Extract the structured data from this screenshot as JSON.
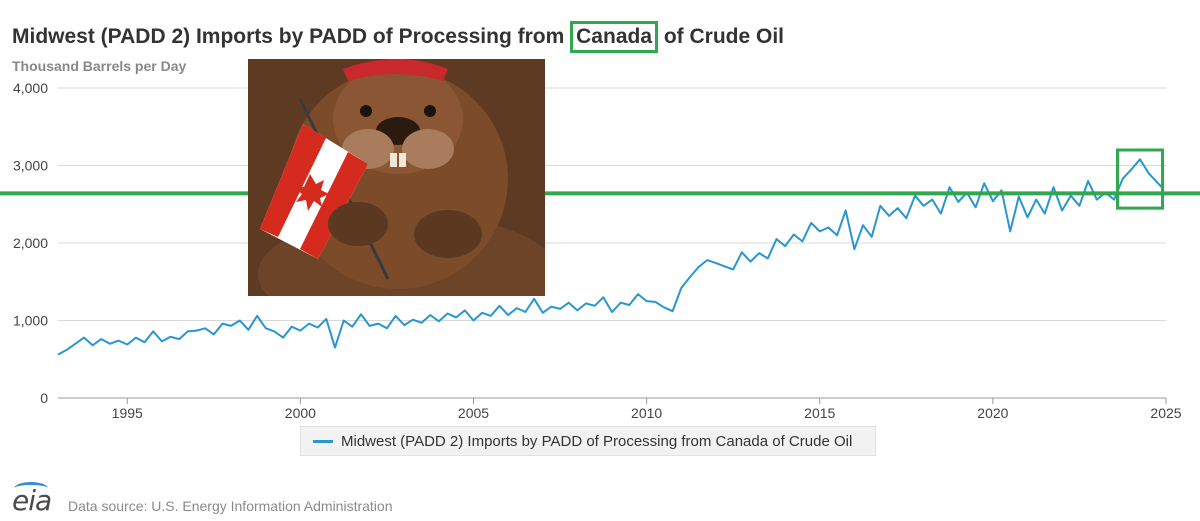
{
  "title": {
    "before": "Midwest (PADD 2) Imports by PADD of Processing from",
    "highlight": "Canada",
    "after": "of Crude Oil"
  },
  "unit_label": "Thousand Barrels per Day",
  "legend_label": "Midwest (PADD 2) Imports by PADD of Processing from Canada of Crude Oil",
  "source": "Data source: U.S. Energy Information Administration",
  "logo": "eia",
  "colors": {
    "series": "#2a96cf",
    "annotation": "#2fa84f",
    "grid": "#d8d8d8",
    "axis_text": "#444444"
  },
  "chart_data": {
    "type": "line",
    "title": "Midwest (PADD 2) Imports by PADD of Processing from Canada of Crude Oil",
    "ylabel": "Thousand Barrels per Day",
    "xlabel": "",
    "xlim": [
      1993.0,
      2025.0
    ],
    "ylim": [
      0,
      4000
    ],
    "yticks": [
      0,
      1000,
      2000,
      3000,
      4000
    ],
    "ytick_labels": [
      "0",
      "1,000",
      "2,000",
      "3,000",
      "4,000"
    ],
    "xticks": [
      1995,
      2000,
      2005,
      2010,
      2015,
      2020,
      2025
    ],
    "xtick_labels": [
      "1995",
      "2000",
      "2005",
      "2010",
      "2015",
      "2020",
      "2025"
    ],
    "grid": "horizontal",
    "legend": "bottom",
    "series": [
      {
        "name": "Midwest (PADD 2) Imports by PADD of Processing from Canada of Crude Oil",
        "color": "#2a96cf",
        "x": [
          1993.0,
          1993.25,
          1993.5,
          1993.75,
          1994.0,
          1994.25,
          1994.5,
          1994.75,
          1995.0,
          1995.25,
          1995.5,
          1995.75,
          1996.0,
          1996.25,
          1996.5,
          1996.75,
          1997.0,
          1997.25,
          1997.5,
          1997.75,
          1998.0,
          1998.25,
          1998.5,
          1998.75,
          1999.0,
          1999.25,
          1999.5,
          1999.75,
          2000.0,
          2000.25,
          2000.5,
          2000.75,
          2001.0,
          2001.25,
          2001.5,
          2001.75,
          2002.0,
          2002.25,
          2002.5,
          2002.75,
          2003.0,
          2003.25,
          2003.5,
          2003.75,
          2004.0,
          2004.25,
          2004.5,
          2004.75,
          2005.0,
          2005.25,
          2005.5,
          2005.75,
          2006.0,
          2006.25,
          2006.5,
          2006.75,
          2007.0,
          2007.25,
          2007.5,
          2007.75,
          2008.0,
          2008.25,
          2008.5,
          2008.75,
          2009.0,
          2009.25,
          2009.5,
          2009.75,
          2010.0,
          2010.25,
          2010.5,
          2010.75,
          2011.0,
          2011.25,
          2011.5,
          2011.75,
          2012.0,
          2012.25,
          2012.5,
          2012.75,
          2013.0,
          2013.25,
          2013.5,
          2013.75,
          2014.0,
          2014.25,
          2014.5,
          2014.75,
          2015.0,
          2015.25,
          2015.5,
          2015.75,
          2016.0,
          2016.25,
          2016.5,
          2016.75,
          2017.0,
          2017.25,
          2017.5,
          2017.75,
          2018.0,
          2018.25,
          2018.5,
          2018.75,
          2019.0,
          2019.25,
          2019.5,
          2019.75,
          2020.0,
          2020.25,
          2020.5,
          2020.75,
          2021.0,
          2021.25,
          2021.5,
          2021.75,
          2022.0,
          2022.25,
          2022.5,
          2022.75,
          2023.0,
          2023.25,
          2023.5,
          2023.75,
          2024.0,
          2024.25,
          2024.5,
          2024.75,
          2024.9
        ],
        "values": [
          560,
          620,
          700,
          780,
          680,
          760,
          700,
          740,
          690,
          780,
          720,
          860,
          730,
          790,
          760,
          860,
          870,
          900,
          820,
          960,
          930,
          1000,
          880,
          1060,
          900,
          860,
          780,
          920,
          870,
          960,
          910,
          1020,
          650,
          1000,
          920,
          1080,
          930,
          960,
          900,
          1060,
          940,
          1010,
          970,
          1070,
          990,
          1090,
          1040,
          1130,
          1000,
          1100,
          1060,
          1190,
          1070,
          1160,
          1110,
          1280,
          1100,
          1180,
          1150,
          1230,
          1130,
          1220,
          1190,
          1300,
          1110,
          1230,
          1200,
          1340,
          1250,
          1240,
          1170,
          1120,
          1420,
          1560,
          1690,
          1780,
          1740,
          1700,
          1660,
          1880,
          1760,
          1870,
          1800,
          2050,
          1960,
          2110,
          2020,
          2260,
          2150,
          2200,
          2100,
          2420,
          1920,
          2230,
          2080,
          2480,
          2350,
          2450,
          2320,
          2610,
          2480,
          2560,
          2380,
          2720,
          2530,
          2650,
          2460,
          2770,
          2540,
          2680,
          2150,
          2600,
          2330,
          2560,
          2380,
          2720,
          2420,
          2610,
          2480,
          2800,
          2560,
          2650,
          2560,
          2830,
          2950,
          3080,
          2900,
          2780,
          2710
        ]
      }
    ],
    "annotations": [
      {
        "type": "horizontal_line",
        "y": 2640,
        "color": "#2fa84f"
      },
      {
        "type": "box",
        "x": [
          2023.6,
          2024.9
        ],
        "y": [
          2450,
          3200
        ],
        "color": "#2fa84f"
      }
    ]
  }
}
